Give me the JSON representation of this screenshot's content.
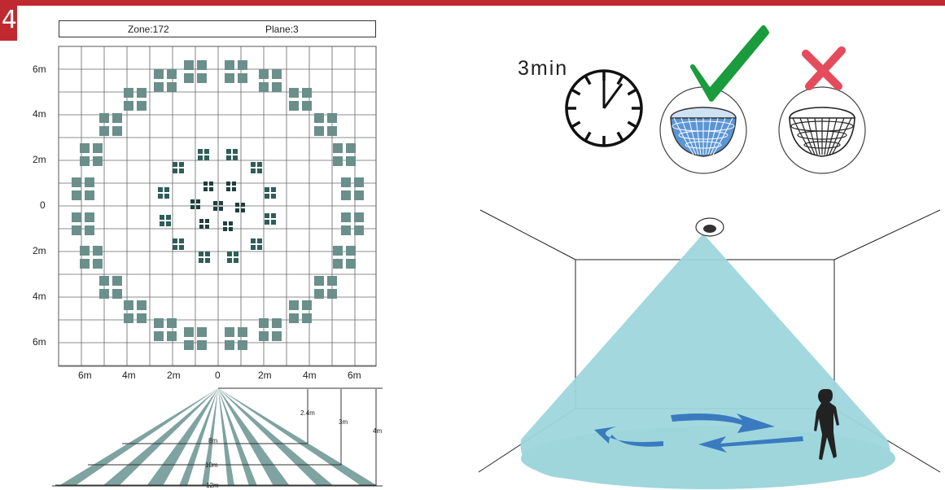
{
  "step_number": "4",
  "header": {
    "zone_label": "Zone:172",
    "plane_label": "Plane:3"
  },
  "grid": {
    "y_labels": [
      "6m",
      "4m",
      "2m",
      "0",
      "2m",
      "4m",
      "6m"
    ],
    "x_labels": [
      "6m",
      "4m",
      "2m",
      "0",
      "2m",
      "4m",
      "6m"
    ]
  },
  "beam_diagram": {
    "height_labels": [
      "2.4m",
      "3m",
      "4m"
    ],
    "width_labels": [
      "8m",
      "10m",
      "12m"
    ]
  },
  "timer": {
    "label": "3min"
  },
  "colors": {
    "brand_red": "#c0292f",
    "zone_square": "#6b8f8b",
    "cone": "#9ed6dc",
    "check": "#1a9b3c",
    "cross": "#e44c5c",
    "arrow": "#3a7bbf"
  }
}
